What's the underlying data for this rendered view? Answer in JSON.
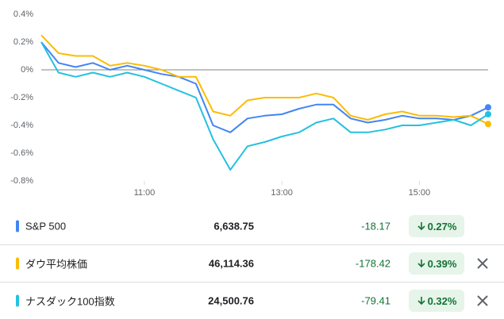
{
  "chart_data": {
    "type": "line",
    "x": [
      9.5,
      9.75,
      10,
      10.25,
      10.5,
      10.75,
      11,
      11.25,
      11.5,
      11.75,
      12,
      12.25,
      12.5,
      12.75,
      13,
      13.25,
      13.5,
      13.75,
      14,
      14.25,
      14.5,
      14.75,
      15,
      15.25,
      15.5,
      15.75,
      16
    ],
    "xlim": [
      9.5,
      16
    ],
    "xticks": [
      {
        "value": 11,
        "label": "11:00"
      },
      {
        "value": 13,
        "label": "13:00"
      },
      {
        "value": 15,
        "label": "15:00"
      }
    ],
    "ylim": [
      -0.8,
      0.4
    ],
    "yticks": [
      {
        "value": 0.4,
        "label": "0.4%"
      },
      {
        "value": 0.2,
        "label": "0.2%"
      },
      {
        "value": 0,
        "label": "0%"
      },
      {
        "value": -0.2,
        "label": "-0.2%"
      },
      {
        "value": -0.4,
        "label": "-0.4%"
      },
      {
        "value": -0.6,
        "label": "-0.6%"
      },
      {
        "value": -0.8,
        "label": "-0.8%"
      }
    ],
    "series": [
      {
        "name": "S&P 500",
        "color": "#4285f4",
        "values": [
          0.2,
          0.05,
          0.02,
          0.05,
          0.0,
          0.03,
          0.0,
          -0.03,
          -0.05,
          -0.1,
          -0.4,
          -0.45,
          -0.35,
          -0.33,
          -0.32,
          -0.28,
          -0.25,
          -0.25,
          -0.35,
          -0.38,
          -0.36,
          -0.33,
          -0.35,
          -0.35,
          -0.36,
          -0.33,
          -0.27
        ]
      },
      {
        "name": "ダウ平均株価",
        "color": "#fbbc04",
        "values": [
          0.25,
          0.12,
          0.1,
          0.1,
          0.03,
          0.05,
          0.03,
          0.0,
          -0.05,
          -0.05,
          -0.3,
          -0.33,
          -0.22,
          -0.2,
          -0.2,
          -0.2,
          -0.17,
          -0.2,
          -0.33,
          -0.36,
          -0.32,
          -0.3,
          -0.33,
          -0.33,
          -0.34,
          -0.33,
          -0.39
        ]
      },
      {
        "name": "ナスダック100指数",
        "color": "#24c1e0",
        "values": [
          0.2,
          -0.02,
          -0.05,
          -0.02,
          -0.05,
          -0.02,
          -0.05,
          -0.1,
          -0.15,
          -0.2,
          -0.5,
          -0.72,
          -0.55,
          -0.52,
          -0.48,
          -0.45,
          -0.38,
          -0.35,
          -0.45,
          -0.45,
          -0.43,
          -0.4,
          -0.4,
          -0.38,
          -0.36,
          -0.4,
          -0.32
        ]
      }
    ]
  },
  "table": {
    "rows": [
      {
        "name": "S&P 500",
        "price": "6,638.75",
        "change": "-18.17",
        "percent": "0.27%"
      },
      {
        "name": "ダウ平均株価",
        "price": "46,114.36",
        "change": "-178.42",
        "percent": "0.39%"
      },
      {
        "name": "ナスダック100指数",
        "price": "24,500.76",
        "change": "-79.41",
        "percent": "0.32%"
      }
    ]
  }
}
